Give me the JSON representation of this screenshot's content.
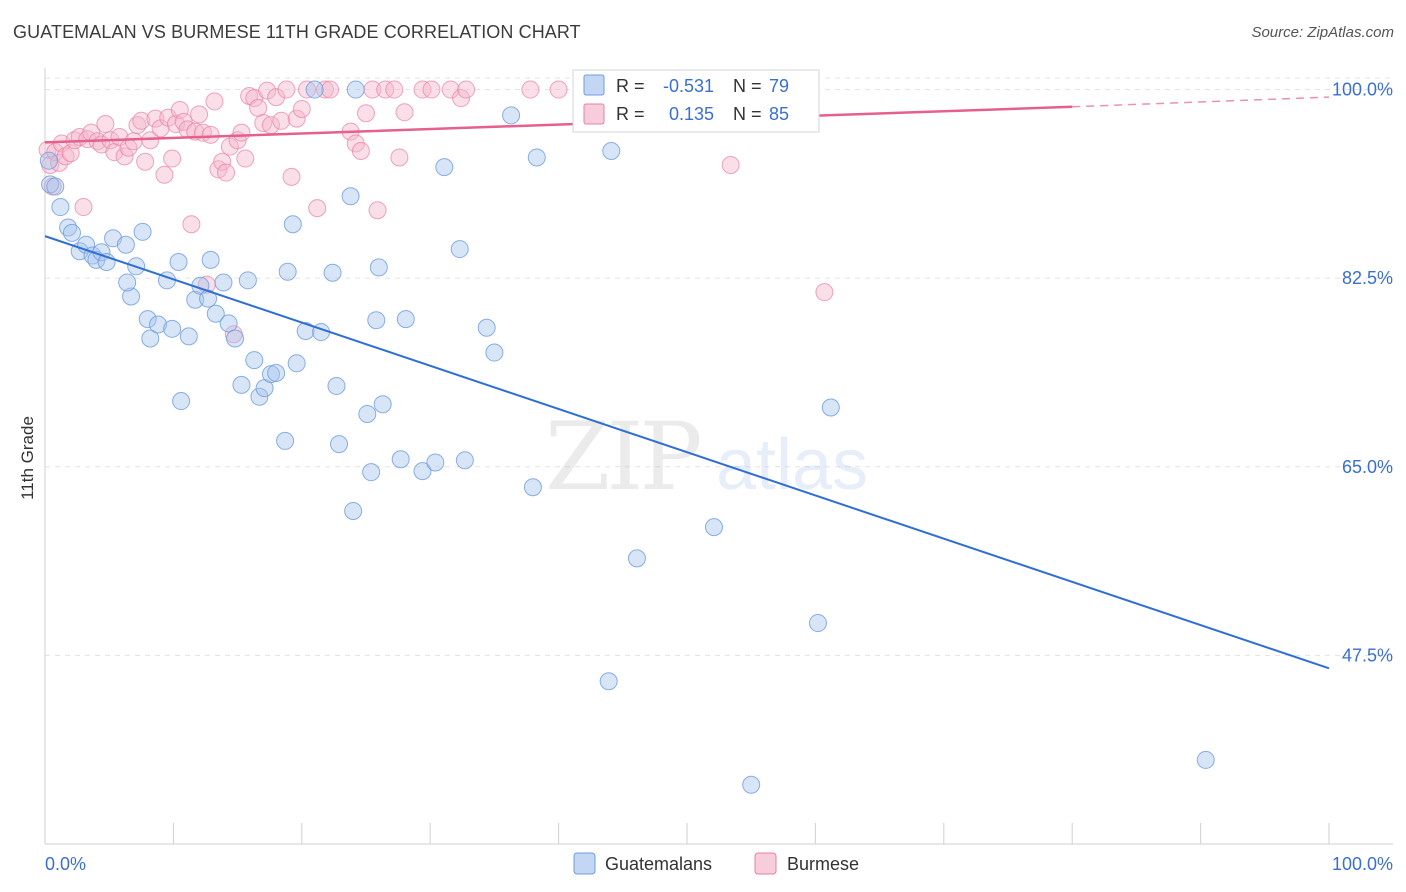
{
  "chart_data": {
    "type": "scatter",
    "title": "GUATEMALAN VS BURMESE 11TH GRADE CORRELATION CHART",
    "source": "Source: ZipAtlas.com",
    "xlabel": "",
    "ylabel": "11th Grade",
    "xlim": [
      0,
      100
    ],
    "ylim": [
      30,
      102
    ],
    "x_tick_labels": [
      "0.0%",
      "100.0%"
    ],
    "y_ticks": [
      {
        "value": 100,
        "label": "100.0%"
      },
      {
        "value": 82.5,
        "label": "82.5%"
      },
      {
        "value": 65,
        "label": "65.0%"
      },
      {
        "value": 47.5,
        "label": "47.5%"
      }
    ],
    "watermark": "ZIPatlas",
    "colors": {
      "guatemalans": "#6d9ce0",
      "guatemalans_fill": "#a9c5ee",
      "guatemalans_line": "#2f6fd3",
      "burmese": "#ea7fa3",
      "burmese_fill": "#f4b8cc",
      "burmese_line": "#e5608c",
      "legend_text": "#3a6fd1"
    },
    "legend_box": [
      {
        "r_label": "R =",
        "r_value": "-0.531",
        "n_label": "N =",
        "n_value": "79"
      },
      {
        "r_label": "R =",
        "r_value": "0.135",
        "n_label": "N =",
        "n_value": "85"
      }
    ],
    "series": [
      {
        "name": "Guatemalans",
        "trend": {
          "x": [
            0,
            100
          ],
          "y": [
            86.4,
            46.3
          ]
        },
        "points": [
          [
            0.3,
            93.4
          ],
          [
            0.4,
            91.2
          ],
          [
            0.8,
            91.0
          ],
          [
            1.2,
            89.1
          ],
          [
            1.8,
            87.2
          ],
          [
            2.1,
            86.7
          ],
          [
            2.7,
            85.0
          ],
          [
            3.2,
            85.6
          ],
          [
            3.7,
            84.6
          ],
          [
            4.0,
            84.2
          ],
          [
            4.4,
            84.9
          ],
          [
            4.8,
            84.0
          ],
          [
            5.3,
            86.2
          ],
          [
            6.3,
            85.6
          ],
          [
            6.7,
            80.8
          ],
          [
            6.4,
            82.1
          ],
          [
            7.1,
            83.6
          ],
          [
            7.6,
            86.8
          ],
          [
            8.0,
            78.7
          ],
          [
            8.2,
            76.9
          ],
          [
            8.8,
            78.2
          ],
          [
            9.5,
            82.3
          ],
          [
            9.9,
            77.8
          ],
          [
            10.4,
            84.0
          ],
          [
            10.6,
            71.1
          ],
          [
            11.2,
            77.1
          ],
          [
            11.7,
            80.5
          ],
          [
            12.1,
            81.8
          ],
          [
            12.7,
            80.6
          ],
          [
            12.9,
            84.2
          ],
          [
            13.3,
            79.2
          ],
          [
            13.9,
            82.1
          ],
          [
            14.3,
            78.3
          ],
          [
            14.8,
            76.9
          ],
          [
            15.3,
            72.6
          ],
          [
            15.8,
            82.3
          ],
          [
            16.3,
            74.9
          ],
          [
            16.7,
            71.5
          ],
          [
            17.1,
            72.3
          ],
          [
            17.6,
            73.6
          ],
          [
            18.0,
            73.7
          ],
          [
            18.7,
            67.4
          ],
          [
            18.9,
            83.1
          ],
          [
            19.3,
            87.5
          ],
          [
            19.6,
            74.6
          ],
          [
            20.3,
            77.6
          ],
          [
            21.0,
            100.0
          ],
          [
            21.5,
            77.5
          ],
          [
            22.4,
            83.0
          ],
          [
            22.7,
            72.5
          ],
          [
            22.9,
            67.1
          ],
          [
            23.8,
            90.1
          ],
          [
            24.0,
            60.9
          ],
          [
            24.2,
            100.0
          ],
          [
            25.1,
            69.9
          ],
          [
            25.4,
            64.5
          ],
          [
            25.8,
            78.6
          ],
          [
            26.0,
            83.5
          ],
          [
            26.3,
            70.8
          ],
          [
            27.7,
            65.7
          ],
          [
            28.1,
            78.7
          ],
          [
            29.4,
            64.6
          ],
          [
            30.4,
            65.4
          ],
          [
            31.1,
            92.8
          ],
          [
            32.3,
            85.2
          ],
          [
            32.7,
            65.6
          ],
          [
            34.4,
            77.9
          ],
          [
            35.0,
            75.6
          ],
          [
            36.3,
            97.6
          ],
          [
            38.0,
            63.1
          ],
          [
            38.3,
            93.7
          ],
          [
            43.9,
            45.1
          ],
          [
            44.1,
            94.3
          ],
          [
            46.1,
            56.5
          ],
          [
            52.1,
            59.4
          ],
          [
            55.0,
            35.5
          ],
          [
            58.3,
            100.0
          ],
          [
            60.2,
            50.5
          ],
          [
            61.2,
            70.5
          ],
          [
            90.4,
            37.8
          ]
        ]
      },
      {
        "name": "Burmese",
        "trend": {
          "x": [
            0,
            80
          ],
          "y": [
            95.1,
            98.4
          ]
        },
        "trend_dashed": {
          "x": [
            80,
            100
          ],
          "y": [
            98.4,
            99.3
          ]
        },
        "points": [
          [
            0.2,
            94.4
          ],
          [
            0.4,
            93.0
          ],
          [
            0.6,
            91.0
          ],
          [
            0.8,
            94.2
          ],
          [
            1.1,
            93.2
          ],
          [
            1.3,
            95.0
          ],
          [
            1.6,
            93.8
          ],
          [
            2.0,
            94.1
          ],
          [
            2.3,
            95.3
          ],
          [
            2.7,
            95.6
          ],
          [
            3.0,
            89.1
          ],
          [
            3.3,
            95.4
          ],
          [
            3.6,
            96.0
          ],
          [
            4.1,
            95.2
          ],
          [
            4.4,
            94.9
          ],
          [
            4.7,
            96.8
          ],
          [
            5.1,
            95.3
          ],
          [
            5.4,
            94.2
          ],
          [
            5.8,
            95.6
          ],
          [
            6.2,
            93.8
          ],
          [
            6.5,
            94.6
          ],
          [
            6.9,
            95.2
          ],
          [
            7.2,
            96.7
          ],
          [
            7.5,
            97.1
          ],
          [
            7.8,
            93.3
          ],
          [
            8.2,
            95.3
          ],
          [
            8.6,
            97.3
          ],
          [
            9.0,
            96.4
          ],
          [
            9.3,
            92.1
          ],
          [
            9.6,
            97.4
          ],
          [
            9.9,
            93.6
          ],
          [
            10.2,
            96.8
          ],
          [
            10.5,
            98.1
          ],
          [
            10.8,
            97.0
          ],
          [
            11.1,
            96.3
          ],
          [
            11.4,
            87.5
          ],
          [
            11.7,
            96.1
          ],
          [
            12.0,
            97.7
          ],
          [
            12.3,
            96.0
          ],
          [
            12.6,
            81.9
          ],
          [
            12.9,
            95.8
          ],
          [
            13.2,
            98.9
          ],
          [
            13.5,
            92.6
          ],
          [
            13.8,
            93.3
          ],
          [
            14.1,
            92.3
          ],
          [
            14.4,
            94.7
          ],
          [
            14.7,
            77.3
          ],
          [
            15.0,
            95.3
          ],
          [
            15.3,
            96.0
          ],
          [
            15.6,
            93.6
          ],
          [
            15.9,
            99.4
          ],
          [
            16.3,
            99.2
          ],
          [
            16.6,
            98.3
          ],
          [
            17.0,
            96.9
          ],
          [
            17.3,
            99.9
          ],
          [
            17.6,
            96.7
          ],
          [
            18.0,
            99.3
          ],
          [
            18.4,
            97.1
          ],
          [
            18.8,
            100.0
          ],
          [
            19.2,
            91.9
          ],
          [
            19.6,
            97.3
          ],
          [
            20.0,
            98.2
          ],
          [
            20.4,
            100.0
          ],
          [
            21.2,
            89.0
          ],
          [
            21.8,
            100.0
          ],
          [
            22.2,
            100.0
          ],
          [
            23.8,
            96.1
          ],
          [
            24.2,
            95.0
          ],
          [
            24.6,
            94.3
          ],
          [
            25.0,
            97.8
          ],
          [
            25.5,
            100.0
          ],
          [
            25.9,
            88.8
          ],
          [
            26.5,
            100.0
          ],
          [
            27.2,
            100.0
          ],
          [
            27.6,
            93.7
          ],
          [
            28.0,
            97.9
          ],
          [
            29.4,
            100.0
          ],
          [
            30.1,
            100.0
          ],
          [
            31.6,
            100.0
          ],
          [
            32.4,
            99.2
          ],
          [
            32.8,
            100.0
          ],
          [
            37.8,
            100.0
          ],
          [
            40.0,
            100.0
          ],
          [
            53.4,
            93.0
          ],
          [
            60.7,
            81.2
          ]
        ]
      }
    ],
    "legend": [
      "Guatemalans",
      "Burmese"
    ]
  }
}
